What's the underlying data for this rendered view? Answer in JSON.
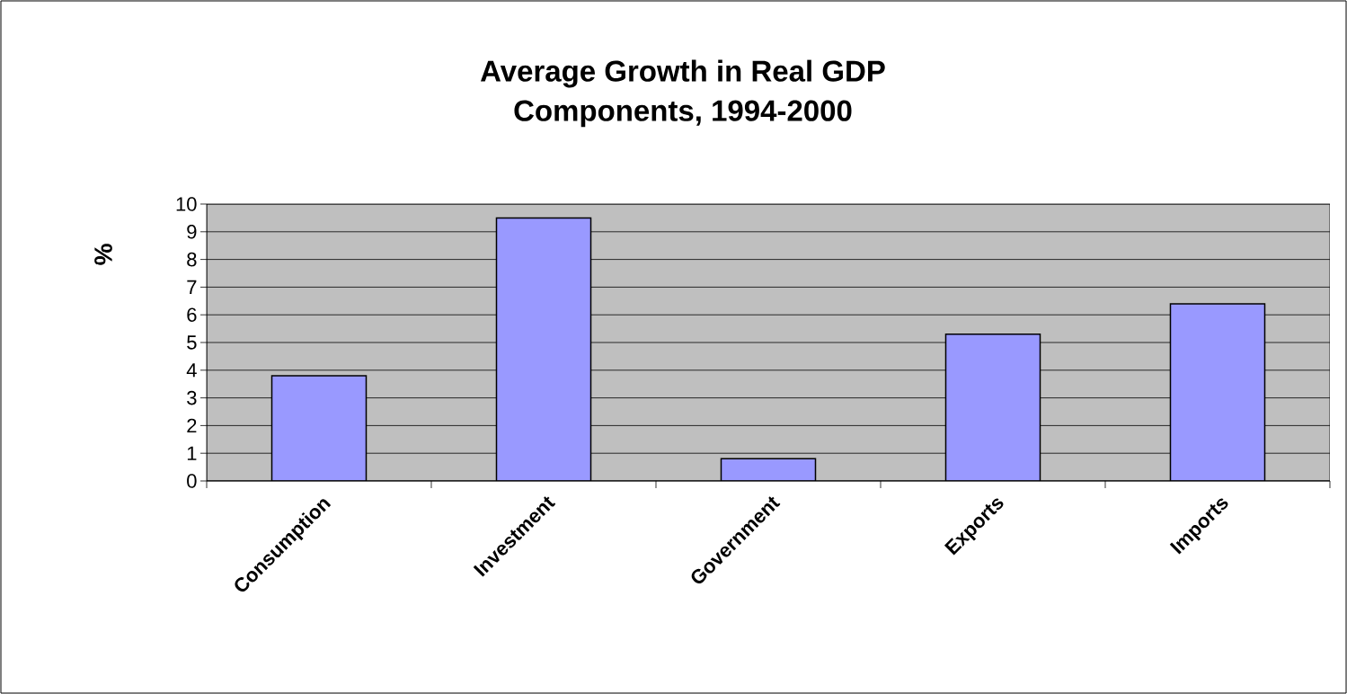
{
  "chart_data": {
    "type": "bar",
    "title": "Average Growth in Real GDP\nComponents, 1994-2000",
    "ylabel": "%",
    "categories": [
      "Consumption",
      "Investment",
      "Government",
      "Exports",
      "Imports"
    ],
    "values": [
      3.8,
      9.5,
      0.8,
      5.3,
      6.4
    ],
    "color": "#9999ff",
    "ylim": [
      0,
      10
    ],
    "yticks": [
      0,
      1,
      2,
      3,
      4,
      5,
      6,
      7,
      8,
      9,
      10
    ],
    "grid": "y"
  }
}
